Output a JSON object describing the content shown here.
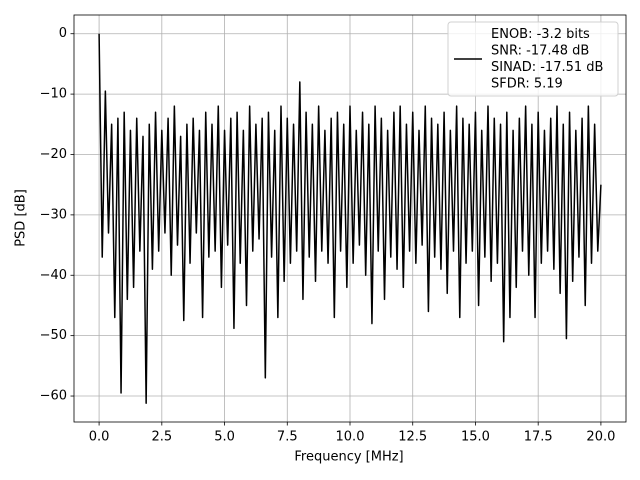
{
  "chart_data": {
    "type": "line",
    "xlabel": "Frequency [MHz]",
    "ylabel": "PSD [dB]",
    "xlim": [
      -1,
      21
    ],
    "ylim": [
      -64.3,
      3.1
    ],
    "xticks": [
      {
        "value": 0,
        "label": "0.0"
      },
      2.5,
      {
        "value": 5,
        "label": "5.0"
      },
      7.5,
      {
        "value": 10,
        "label": "10.0"
      },
      12.5,
      {
        "value": 15,
        "label": "15.0"
      },
      17.5,
      {
        "value": 20,
        "label": "20.0"
      }
    ],
    "yticks": [
      0,
      {
        "value": -10,
        "label": "−10"
      },
      {
        "value": -20,
        "label": "−20"
      },
      {
        "value": -30,
        "label": "−30"
      },
      {
        "value": -40,
        "label": "−40"
      },
      {
        "value": -50,
        "label": "−50"
      },
      {
        "value": -60,
        "label": "−60"
      }
    ],
    "grid": true,
    "legend": "upper right",
    "x": [
      0,
      0.125,
      0.25,
      0.375,
      0.5,
      0.625,
      0.75,
      0.875,
      1,
      1.125,
      1.25,
      1.375,
      1.5,
      1.625,
      1.75,
      1.875,
      2,
      2.125,
      2.25,
      2.375,
      2.5,
      2.625,
      2.75,
      2.875,
      3,
      3.125,
      3.25,
      3.375,
      3.5,
      3.625,
      3.75,
      3.875,
      4,
      4.125,
      4.25,
      4.375,
      4.5,
      4.625,
      4.75,
      4.875,
      5,
      5.125,
      5.25,
      5.375,
      5.5,
      5.625,
      5.75,
      5.875,
      6,
      6.125,
      6.25,
      6.375,
      6.5,
      6.625,
      6.75,
      6.875,
      7,
      7.125,
      7.25,
      7.375,
      7.5,
      7.625,
      7.75,
      7.875,
      8,
      8.125,
      8.25,
      8.375,
      8.5,
      8.625,
      8.75,
      8.875,
      9,
      9.125,
      9.25,
      9.375,
      9.5,
      9.625,
      9.75,
      9.875,
      10,
      10.125,
      10.25,
      10.375,
      10.5,
      10.625,
      10.75,
      10.875,
      11,
      11.125,
      11.25,
      11.375,
      11.5,
      11.625,
      11.75,
      11.875,
      12,
      12.125,
      12.25,
      12.375,
      12.5,
      12.625,
      12.75,
      12.875,
      13,
      13.125,
      13.25,
      13.375,
      13.5,
      13.625,
      13.75,
      13.875,
      14,
      14.125,
      14.25,
      14.375,
      14.5,
      14.625,
      14.75,
      14.875,
      15,
      15.125,
      15.25,
      15.375,
      15.5,
      15.625,
      15.75,
      15.875,
      16,
      16.125,
      16.25,
      16.375,
      16.5,
      16.625,
      16.75,
      16.875,
      17,
      17.125,
      17.25,
      17.375,
      17.5,
      17.625,
      17.75,
      17.875,
      18,
      18.125,
      18.25,
      18.375,
      18.5,
      18.625,
      18.75,
      18.875,
      19,
      19.125,
      19.25,
      19.375,
      19.5,
      19.625,
      19.75,
      19.875,
      20
    ],
    "series": [
      {
        "name": [
          "ENOB: -3.2 bits",
          "SNR: -17.48 dB",
          "SINAD: -17.51 dB",
          "SFDR: 5.19"
        ],
        "color": "#000000",
        "values": [
          0,
          -37,
          -9.5,
          -33,
          -15,
          -47,
          -14,
          -59.5,
          -13,
          -44,
          -16,
          -42,
          -14,
          -36,
          -17,
          -61.2,
          -15,
          -39,
          -13,
          -36,
          -16,
          -33,
          -14,
          -40,
          -12,
          -35,
          -17,
          -47.5,
          -15,
          -38,
          -14,
          -33,
          -16,
          -47,
          -13,
          -37,
          -15,
          -36,
          -12,
          -42,
          -16,
          -35,
          -14,
          -48.8,
          -13,
          -38,
          -16,
          -45,
          -12,
          -36,
          -15,
          -34,
          -14,
          -57,
          -13,
          -37,
          -16,
          -47,
          -12,
          -41,
          -14,
          -38,
          -15,
          -36,
          -8,
          -44,
          -13,
          -37,
          -15,
          -41,
          -12,
          -36,
          -16,
          -38,
          -14,
          -47,
          -13,
          -36,
          -15,
          -42,
          -12,
          -38,
          -16,
          -35,
          -13,
          -40,
          -15,
          -48,
          -12,
          -36,
          -14,
          -44,
          -16,
          -37,
          -13,
          -39,
          -12,
          -42,
          -15,
          -36,
          -13,
          -38,
          -16,
          -35,
          -12,
          -46,
          -14,
          -37,
          -15,
          -39,
          -13,
          -43,
          -16,
          -36,
          -12,
          -47,
          -14,
          -38,
          -15,
          -36,
          -13,
          -45,
          -16,
          -37,
          -12,
          -41,
          -14,
          -38,
          -15,
          -51,
          -13,
          -47,
          -16,
          -42,
          -14,
          -36,
          -12,
          -40,
          -15,
          -47,
          -13,
          -38,
          -16,
          -36,
          -14,
          -39,
          -12,
          -43,
          -15,
          -50.5,
          -13,
          -41,
          -16,
          -37,
          -14,
          -45,
          -12,
          -38,
          -15,
          -36,
          -25
        ]
      }
    ]
  }
}
